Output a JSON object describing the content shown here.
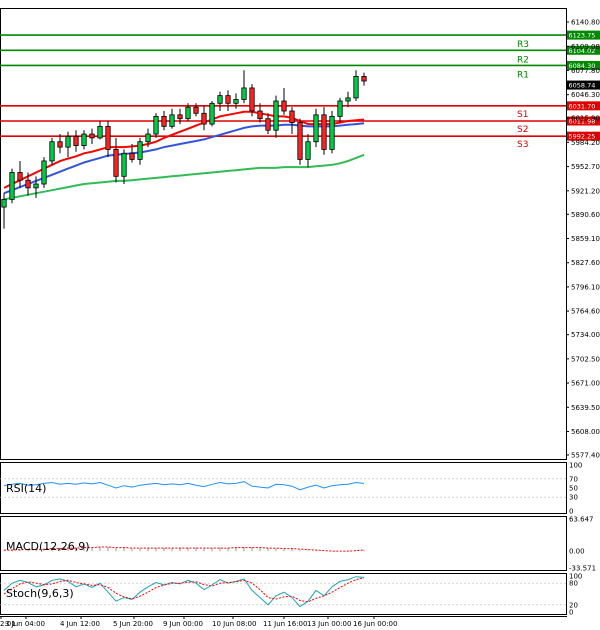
{
  "chart_data": [
    {
      "type": "candlestick",
      "name": "main",
      "ylim": [
        5577.4,
        6140.8
      ],
      "y_ticks": [
        "6140.80",
        "6109.08",
        "6077.80",
        "6046.30",
        "6015.90",
        "5984.20",
        "5952.70",
        "5921.20",
        "5890.60",
        "5859.10",
        "5827.60",
        "5796.10",
        "5764.60",
        "5734.00",
        "5702.50",
        "5671.00",
        "5639.50",
        "5608.00",
        "5577.40"
      ],
      "x_labels": [
        "2:01",
        "3 Jun 04:00",
        "4 Jun 12:00",
        "5 Jun 20:00",
        "9 Jun 00:00",
        "10 Jun 08:00",
        "11 Jun 16:00",
        "13 Jun 00:00",
        "16 Jun 00:00"
      ],
      "candles": [
        {
          "o": 5900,
          "h": 5918,
          "l": 5872,
          "c": 5910
        },
        {
          "o": 5910,
          "h": 5950,
          "l": 5905,
          "c": 5945
        },
        {
          "o": 5945,
          "h": 5960,
          "l": 5925,
          "c": 5935
        },
        {
          "o": 5935,
          "h": 5945,
          "l": 5915,
          "c": 5925
        },
        {
          "o": 5925,
          "h": 5940,
          "l": 5912,
          "c": 5930
        },
        {
          "o": 5930,
          "h": 5965,
          "l": 5925,
          "c": 5960
        },
        {
          "o": 5960,
          "h": 5990,
          "l": 5955,
          "c": 5985
        },
        {
          "o": 5985,
          "h": 5995,
          "l": 5970,
          "c": 5978
        },
        {
          "o": 5978,
          "h": 5998,
          "l": 5965,
          "c": 5992
        },
        {
          "o": 5992,
          "h": 6000,
          "l": 5972,
          "c": 5980
        },
        {
          "o": 5980,
          "h": 6000,
          "l": 5975,
          "c": 5995
        },
        {
          "o": 5995,
          "h": 6002,
          "l": 5982,
          "c": 5990
        },
        {
          "o": 5990,
          "h": 6012,
          "l": 5988,
          "c": 6005
        },
        {
          "o": 6005,
          "h": 6012,
          "l": 5965,
          "c": 5975
        },
        {
          "o": 5975,
          "h": 5990,
          "l": 5932,
          "c": 5940
        },
        {
          "o": 5940,
          "h": 5975,
          "l": 5930,
          "c": 5970
        },
        {
          "o": 5970,
          "h": 5982,
          "l": 5958,
          "c": 5962
        },
        {
          "o": 5962,
          "h": 5990,
          "l": 5955,
          "c": 5985
        },
        {
          "o": 5985,
          "h": 6002,
          "l": 5978,
          "c": 5995
        },
        {
          "o": 5995,
          "h": 6022,
          "l": 5990,
          "c": 6018
        },
        {
          "o": 6018,
          "h": 6025,
          "l": 6000,
          "c": 6005
        },
        {
          "o": 6005,
          "h": 6028,
          "l": 6002,
          "c": 6020
        },
        {
          "o": 6020,
          "h": 6028,
          "l": 6008,
          "c": 6015
        },
        {
          "o": 6015,
          "h": 6035,
          "l": 6012,
          "c": 6030
        },
        {
          "o": 6030,
          "h": 6035,
          "l": 6018,
          "c": 6022
        },
        {
          "o": 6022,
          "h": 6032,
          "l": 6000,
          "c": 6008
        },
        {
          "o": 6008,
          "h": 6038,
          "l": 6005,
          "c": 6035
        },
        {
          "o": 6035,
          "h": 6050,
          "l": 6025,
          "c": 6045
        },
        {
          "o": 6045,
          "h": 6052,
          "l": 6025,
          "c": 6035
        },
        {
          "o": 6035,
          "h": 6048,
          "l": 6028,
          "c": 6040
        },
        {
          "o": 6040,
          "h": 6078,
          "l": 6035,
          "c": 6055
        },
        {
          "o": 6055,
          "h": 6060,
          "l": 6018,
          "c": 6025
        },
        {
          "o": 6025,
          "h": 6035,
          "l": 6010,
          "c": 6015
        },
        {
          "o": 6015,
          "h": 6022,
          "l": 5995,
          "c": 6000
        },
        {
          "o": 6000,
          "h": 6045,
          "l": 5990,
          "c": 6038
        },
        {
          "o": 6038,
          "h": 6055,
          "l": 6020,
          "c": 6025
        },
        {
          "o": 6025,
          "h": 6030,
          "l": 5995,
          "c": 6010
        },
        {
          "o": 6010,
          "h": 6015,
          "l": 5955,
          "c": 5962
        },
        {
          "o": 5962,
          "h": 5995,
          "l": 5952,
          "c": 5985
        },
        {
          "o": 5985,
          "h": 6028,
          "l": 5978,
          "c": 6020
        },
        {
          "o": 6020,
          "h": 6030,
          "l": 5968,
          "c": 5975
        },
        {
          "o": 5975,
          "h": 6025,
          "l": 5970,
          "c": 6018
        },
        {
          "o": 6018,
          "h": 6042,
          "l": 6010,
          "c": 6038
        },
        {
          "o": 6038,
          "h": 6050,
          "l": 6030,
          "c": 6042
        },
        {
          "o": 6042,
          "h": 6078,
          "l": 6038,
          "c": 6070
        },
        {
          "o": 6070,
          "h": 6075,
          "l": 6058,
          "c": 6064
        }
      ],
      "series": [
        {
          "name": "MA red",
          "color": "#ff0000",
          "values": [
            5925,
            5930,
            5935,
            5940,
            5945,
            5950,
            5955,
            5960,
            5963,
            5966,
            5970,
            5972,
            5975,
            5978,
            5978,
            5978,
            5979,
            5980,
            5982,
            5985,
            5990,
            5994,
            5998,
            6002,
            6006,
            6010,
            6014,
            6018,
            6020,
            6022,
            6024,
            6024,
            6022,
            6020,
            6018,
            6018,
            6016,
            6012,
            6008,
            6008,
            6008,
            6008,
            6010,
            6012,
            6013,
            6014
          ]
        },
        {
          "name": "MA blue",
          "color": "#3355dd",
          "values": [
            5918,
            5922,
            5926,
            5930,
            5934,
            5938,
            5942,
            5946,
            5950,
            5954,
            5958,
            5961,
            5964,
            5967,
            5968,
            5969,
            5970,
            5971,
            5973,
            5975,
            5978,
            5980,
            5982,
            5984,
            5986,
            5988,
            5991,
            5994,
            5997,
            6000,
            6003,
            6005,
            6006,
            6006,
            6006,
            6007,
            6007,
            6006,
            6005,
            6005,
            6005,
            6005,
            6006,
            6007,
            6008,
            6009
          ]
        },
        {
          "name": "MA green",
          "color": "#33bb55",
          "values": [
            5910,
            5912,
            5914,
            5916,
            5918,
            5920,
            5922,
            5924,
            5926,
            5928,
            5930,
            5931,
            5932,
            5933,
            5934,
            5934,
            5935,
            5936,
            5937,
            5938,
            5939,
            5940,
            5941,
            5942,
            5943,
            5944,
            5945,
            5946,
            5947,
            5948,
            5949,
            5950,
            5951,
            5951,
            5951,
            5952,
            5952,
            5952,
            5952,
            5953,
            5954,
            5955,
            5957,
            5960,
            5964,
            5968
          ]
        }
      ],
      "levels": [
        {
          "name": "R3",
          "value": 6123.75,
          "label": "6123.75",
          "color": "#008800"
        },
        {
          "name": "R2",
          "value": 6104.02,
          "label": "6104.02",
          "color": "#008800"
        },
        {
          "name": "R1",
          "value": 6084.3,
          "label": "6084.30",
          "color": "#008800"
        },
        {
          "name": "S1",
          "value": 6031.7,
          "label": "6031.70",
          "color": "#dd0000"
        },
        {
          "name": "S2",
          "value": 6011.98,
          "label": "6011.98",
          "color": "#dd0000"
        },
        {
          "name": "S3",
          "value": 5992.25,
          "label": "5992.25",
          "color": "#dd0000"
        }
      ],
      "current_price": "6058.74"
    },
    {
      "type": "line",
      "name": "RSI(14)",
      "ylim": [
        0,
        100
      ],
      "y_ticks": [
        "100",
        "70",
        "50",
        "30",
        "0"
      ],
      "values": [
        55,
        58,
        60,
        56,
        57,
        60,
        62,
        58,
        60,
        58,
        61,
        59,
        62,
        56,
        50,
        55,
        52,
        56,
        58,
        60,
        57,
        59,
        57,
        60,
        56,
        53,
        58,
        62,
        59,
        60,
        64,
        54,
        52,
        50,
        58,
        57,
        54,
        46,
        52,
        56,
        50,
        55,
        57,
        58,
        62,
        60
      ]
    },
    {
      "type": "histogram",
      "name": "MACD(12,26,9)",
      "ylim": [
        -33.571,
        63.647
      ],
      "y_ticks": [
        "63.647",
        "0.00",
        "-33.571"
      ],
      "values": [
        2,
        3,
        4,
        3,
        3,
        4,
        6,
        6,
        7,
        7,
        8,
        8,
        9,
        8,
        6,
        6,
        5,
        5,
        5,
        6,
        6,
        6,
        6,
        7,
        7,
        6,
        6,
        7,
        7,
        7,
        8,
        7,
        6,
        5,
        5,
        5,
        4,
        2,
        1,
        1,
        0,
        0,
        0,
        1,
        2,
        3
      ],
      "signal": [
        2,
        2,
        3,
        3,
        3,
        4,
        5,
        5,
        6,
        6,
        7,
        7,
        8,
        8,
        7,
        7,
        6,
        6,
        6,
        6,
        6,
        6,
        6,
        6,
        6,
        6,
        6,
        6,
        6,
        7,
        7,
        7,
        7,
        6,
        6,
        5,
        5,
        4,
        3,
        2,
        1,
        0,
        0,
        0,
        1,
        2
      ]
    },
    {
      "type": "line",
      "name": "Stoch(9,6,3)",
      "ylim": [
        0,
        100
      ],
      "y_ticks": [
        "100",
        "80",
        "20",
        "0"
      ],
      "values": [
        60,
        80,
        88,
        82,
        70,
        75,
        88,
        92,
        85,
        70,
        78,
        68,
        80,
        55,
        30,
        40,
        35,
        55,
        70,
        82,
        75,
        82,
        78,
        88,
        80,
        62,
        75,
        90,
        80,
        85,
        92,
        60,
        40,
        20,
        45,
        55,
        40,
        15,
        30,
        60,
        45,
        70,
        85,
        90,
        98,
        96
      ],
      "signal": [
        50,
        65,
        78,
        84,
        80,
        76,
        78,
        85,
        88,
        82,
        78,
        74,
        76,
        68,
        52,
        42,
        36,
        44,
        55,
        68,
        75,
        80,
        80,
        83,
        84,
        76,
        72,
        80,
        82,
        84,
        88,
        80,
        62,
        40,
        36,
        42,
        44,
        32,
        28,
        38,
        45,
        55,
        68,
        80,
        90,
        95
      ]
    }
  ]
}
